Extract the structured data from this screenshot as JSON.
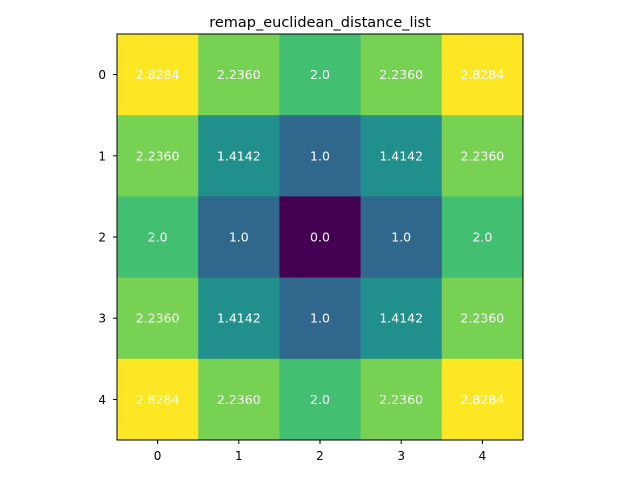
{
  "chart_data": {
    "type": "heatmap",
    "title": "remap_euclidean_distance_list",
    "xlabel": "",
    "ylabel": "",
    "x_ticks": [
      "0",
      "1",
      "2",
      "3",
      "4"
    ],
    "y_ticks": [
      "0",
      "1",
      "2",
      "3",
      "4"
    ],
    "values": [
      [
        2.8284,
        2.236,
        2.0,
        2.236,
        2.8284
      ],
      [
        2.236,
        1.4142,
        1.0,
        1.4142,
        2.236
      ],
      [
        2.0,
        1.0,
        0.0,
        1.0,
        2.0
      ],
      [
        2.236,
        1.4142,
        1.0,
        1.4142,
        2.236
      ],
      [
        2.8284,
        2.236,
        2.0,
        2.236,
        2.8284
      ]
    ],
    "cell_labels": [
      [
        "2.8284",
        "2.2360",
        "2.0",
        "2.2360",
        "2.8284"
      ],
      [
        "2.2360",
        "1.4142",
        "1.0",
        "1.4142",
        "2.2360"
      ],
      [
        "2.0",
        "1.0",
        "0.0",
        "1.0",
        "2.0"
      ],
      [
        "2.2360",
        "1.4142",
        "1.0",
        "1.4142",
        "2.2360"
      ],
      [
        "2.8284",
        "2.2360",
        "2.0",
        "2.2360",
        "2.8284"
      ]
    ],
    "colormap": "viridis",
    "value_range": [
      0.0,
      2.8284
    ],
    "colors": {
      "0.0": "#440154",
      "1.0": "#30678d",
      "1.4142": "#21908d",
      "2.0": "#43bf71",
      "2.2360": "#77d153",
      "2.8284": "#fde725"
    },
    "grid": false,
    "legend": "none"
  }
}
